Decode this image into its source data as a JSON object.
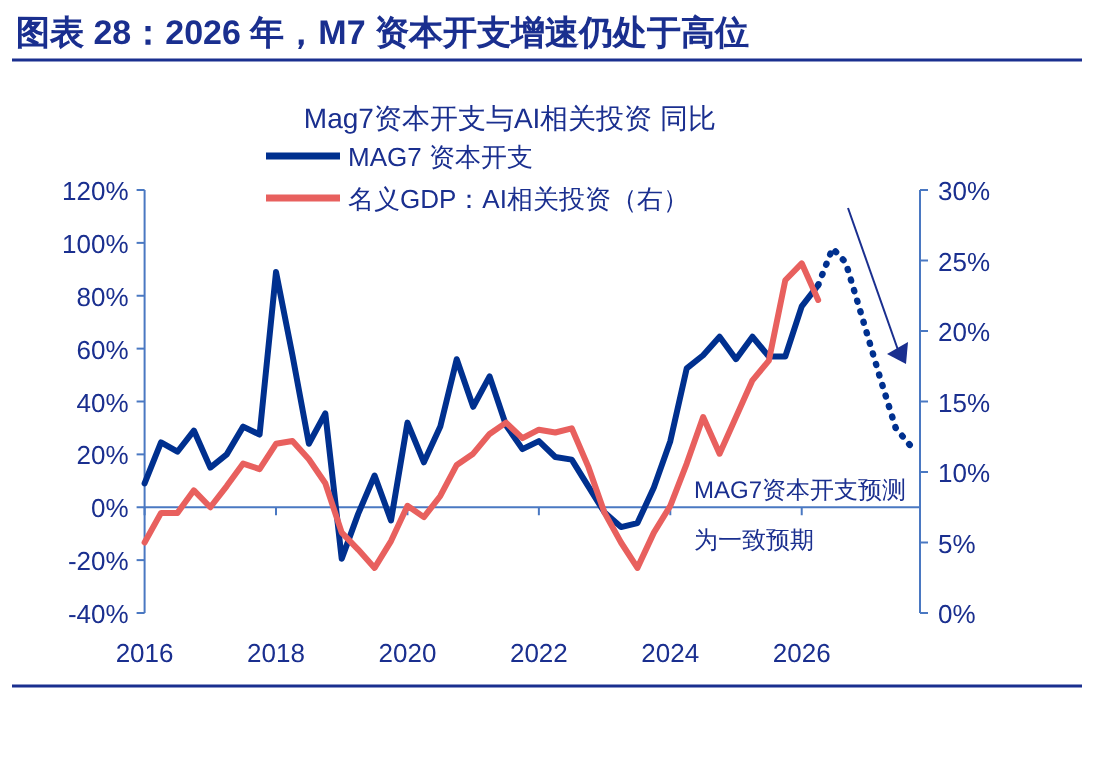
{
  "chart_data": {
    "type": "line",
    "title": "图表 28：2026 年，M7 资本开支增速仍处于高位",
    "subtitle": "Mag7资本开支与AI相关投资 同比",
    "x": [
      2016,
      2016.25,
      2016.5,
      2016.75,
      2017,
      2017.25,
      2017.5,
      2017.75,
      2018,
      2018.25,
      2018.5,
      2018.75,
      2019,
      2019.25,
      2019.5,
      2019.75,
      2020,
      2020.25,
      2020.5,
      2020.75,
      2021,
      2021.25,
      2021.5,
      2021.75,
      2022,
      2022.25,
      2022.5,
      2022.75,
      2023,
      2023.25,
      2023.5,
      2023.75,
      2024,
      2024.25,
      2024.5,
      2024.75,
      2025,
      2025.25,
      2025.5,
      2025.75,
      2026,
      2026.25
    ],
    "series": [
      {
        "name": "MAG7 资本开支",
        "color": "#00308f",
        "values": [
          9,
          24.5,
          21,
          29,
          15,
          20,
          30.5,
          27.5,
          89,
          57.5,
          24,
          35.5,
          -19.5,
          -2.5,
          12,
          -5,
          32,
          17,
          30.5,
          56,
          38,
          49.5,
          31,
          22,
          25,
          19,
          18,
          8,
          -2,
          -7.5,
          -6,
          7.5,
          25,
          52.5,
          57.5,
          64.5,
          56,
          64.5,
          57,
          57,
          76,
          84
        ]
      },
      {
        "name": "名义GDP：AI相关投资（右）",
        "color": "#e8605e",
        "axis": "y2",
        "values": [
          5,
          7.1,
          7.1,
          8.7,
          7.5,
          9,
          10.6,
          10.2,
          12,
          12.2,
          10.9,
          9.2,
          5.7,
          4.5,
          3.2,
          5.1,
          7.6,
          6.8,
          8.3,
          10.5,
          11.3,
          12.7,
          13.5,
          12.4,
          13,
          12.8,
          13.1,
          10.4,
          7.1,
          5,
          3.2,
          5.7,
          7.6,
          10.6,
          13.9,
          11.3,
          13.9,
          16.5,
          17.9,
          23.6,
          24.8,
          22.2
        ]
      },
      {
        "color": "#00308f",
        "line_style": "dotted",
        "x": [
          2026.25,
          2026.47,
          2026.67,
          2026.87,
          2027.18,
          2027.43,
          2027.68
        ],
        "values": [
          84,
          98,
          92.5,
          76,
          50,
          30,
          22.5
        ]
      }
    ],
    "xlim": [
      2016,
      2027.8
    ],
    "xticks": [
      2016,
      2018,
      2020,
      2022,
      2024,
      2026
    ],
    "ylim": [
      -40,
      120
    ],
    "yticks": [
      {
        "value": -40,
        "label": "-40%"
      },
      {
        "value": -20,
        "label": "-20%"
      },
      {
        "value": 0,
        "label": "0%"
      },
      {
        "value": 20,
        "label": "20%"
      },
      {
        "value": 40,
        "label": "40%"
      },
      {
        "value": 60,
        "label": "60%"
      },
      {
        "value": 80,
        "label": "80%"
      },
      {
        "value": 100,
        "label": "100%"
      },
      {
        "value": 120,
        "label": "120%"
      }
    ],
    "y2lim": [
      0,
      30
    ],
    "y2ticks": [
      {
        "value": 0,
        "label": "0%"
      },
      {
        "value": 5,
        "label": "5%"
      },
      {
        "value": 10,
        "label": "10%"
      },
      {
        "value": 15,
        "label": "15%"
      },
      {
        "value": 20,
        "label": "20%"
      },
      {
        "value": 25,
        "label": "25%"
      },
      {
        "value": 30,
        "label": "30%"
      }
    ],
    "annotations": [
      "MAG7资本开支预测",
      "为一致预期"
    ],
    "ref_lines": [
      {
        "axis": "y",
        "value": 0,
        "color": "#4a78c2"
      }
    ],
    "legend": "top",
    "grid": false,
    "marker": "none",
    "line_style": "solid"
  }
}
